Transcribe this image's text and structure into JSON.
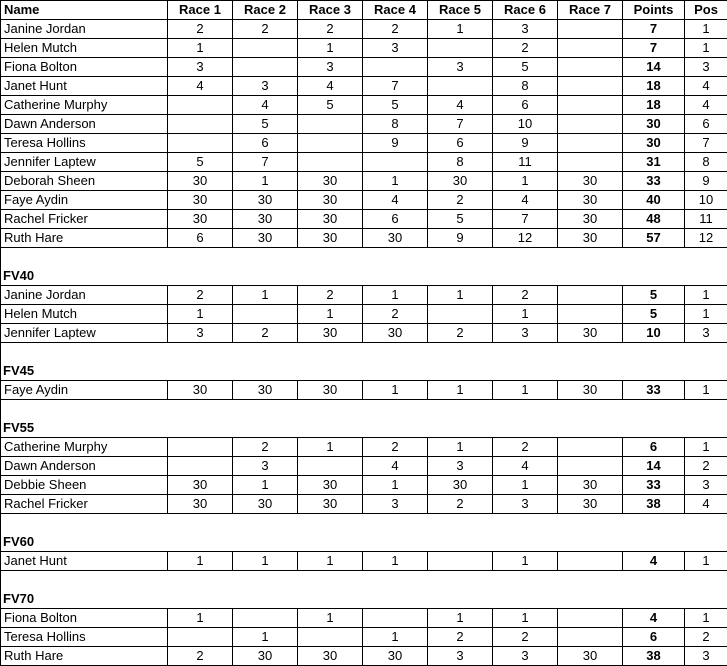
{
  "colors": {
    "border": "#000000",
    "text": "#000000",
    "background": "#ffffff"
  },
  "columns": [
    "Name",
    "Race 1",
    "Race 2",
    "Race 3",
    "Race 4",
    "Race 5",
    "Race 6",
    "Race 7",
    "Points",
    "Pos"
  ],
  "sections": [
    {
      "label": null,
      "rows": [
        {
          "name": "Janine Jordan",
          "races": [
            "2",
            "2",
            "2",
            "2",
            "1",
            "3",
            ""
          ],
          "points": "7",
          "pos": "1"
        },
        {
          "name": "Helen Mutch",
          "races": [
            "1",
            "",
            "1",
            "3",
            "",
            "2",
            ""
          ],
          "points": "7",
          "pos": "1"
        },
        {
          "name": "Fiona Bolton",
          "races": [
            "3",
            "",
            "3",
            "",
            "3",
            "5",
            ""
          ],
          "points": "14",
          "pos": "3"
        },
        {
          "name": "Janet Hunt",
          "races": [
            "4",
            "3",
            "4",
            "7",
            "",
            "8",
            ""
          ],
          "points": "18",
          "pos": "4"
        },
        {
          "name": "Catherine Murphy",
          "races": [
            "",
            "4",
            "5",
            "5",
            "4",
            "6",
            ""
          ],
          "points": "18",
          "pos": "4"
        },
        {
          "name": "Dawn Anderson",
          "races": [
            "",
            "5",
            "",
            "8",
            "7",
            "10",
            ""
          ],
          "points": "30",
          "pos": "6"
        },
        {
          "name": "Teresa Hollins",
          "races": [
            "",
            "6",
            "",
            "9",
            "6",
            "9",
            ""
          ],
          "points": "30",
          "pos": "7"
        },
        {
          "name": "Jennifer Laptew",
          "races": [
            "5",
            "7",
            "",
            "",
            "8",
            "11",
            ""
          ],
          "points": "31",
          "pos": "8"
        },
        {
          "name": "Deborah Sheen",
          "races": [
            "30",
            "1",
            "30",
            "1",
            "30",
            "1",
            "30"
          ],
          "points": "33",
          "pos": "9"
        },
        {
          "name": "Faye Aydin",
          "races": [
            "30",
            "30",
            "30",
            "4",
            "2",
            "4",
            "30"
          ],
          "points": "40",
          "pos": "10"
        },
        {
          "name": "Rachel Fricker",
          "races": [
            "30",
            "30",
            "30",
            "6",
            "5",
            "7",
            "30"
          ],
          "points": "48",
          "pos": "11"
        },
        {
          "name": "Ruth Hare",
          "races": [
            "6",
            "30",
            "30",
            "30",
            "9",
            "12",
            "30"
          ],
          "points": "57",
          "pos": "12"
        }
      ]
    },
    {
      "label": "FV40",
      "rows": [
        {
          "name": "Janine Jordan",
          "races": [
            "2",
            "1",
            "2",
            "1",
            "1",
            "2",
            ""
          ],
          "points": "5",
          "pos": "1"
        },
        {
          "name": "Helen Mutch",
          "races": [
            "1",
            "",
            "1",
            "2",
            "",
            "1",
            ""
          ],
          "points": "5",
          "pos": "1"
        },
        {
          "name": "Jennifer Laptew",
          "races": [
            "3",
            "2",
            "30",
            "30",
            "2",
            "3",
            "30"
          ],
          "points": "10",
          "pos": "3"
        }
      ]
    },
    {
      "label": "FV45",
      "rows": [
        {
          "name": "Faye Aydin",
          "races": [
            "30",
            "30",
            "30",
            "1",
            "1",
            "1",
            "30"
          ],
          "points": "33",
          "pos": "1"
        }
      ]
    },
    {
      "label": "FV55",
      "rows": [
        {
          "name": "Catherine Murphy",
          "races": [
            "",
            "2",
            "1",
            "2",
            "1",
            "2",
            ""
          ],
          "points": "6",
          "pos": "1"
        },
        {
          "name": "Dawn Anderson",
          "races": [
            "",
            "3",
            "",
            "4",
            "3",
            "4",
            ""
          ],
          "points": "14",
          "pos": "2"
        },
        {
          "name": "Debbie Sheen",
          "races": [
            "30",
            "1",
            "30",
            "1",
            "30",
            "1",
            "30"
          ],
          "points": "33",
          "pos": "3"
        },
        {
          "name": "Rachel Fricker",
          "races": [
            "30",
            "30",
            "30",
            "3",
            "2",
            "3",
            "30"
          ],
          "points": "38",
          "pos": "4"
        }
      ]
    },
    {
      "label": "FV60",
      "rows": [
        {
          "name": "Janet Hunt",
          "races": [
            "1",
            "1",
            "1",
            "1",
            "",
            "1",
            ""
          ],
          "points": "4",
          "pos": "1"
        }
      ]
    },
    {
      "label": "FV70",
      "rows": [
        {
          "name": "Fiona Bolton",
          "races": [
            "1",
            "",
            "1",
            "",
            "1",
            "1",
            ""
          ],
          "points": "4",
          "pos": "1"
        },
        {
          "name": "Teresa Hollins",
          "races": [
            "",
            "1",
            "",
            "1",
            "2",
            "2",
            ""
          ],
          "points": "6",
          "pos": "2"
        },
        {
          "name": "Ruth Hare",
          "races": [
            "2",
            "30",
            "30",
            "30",
            "3",
            "3",
            "30"
          ],
          "points": "38",
          "pos": "3"
        }
      ]
    }
  ]
}
